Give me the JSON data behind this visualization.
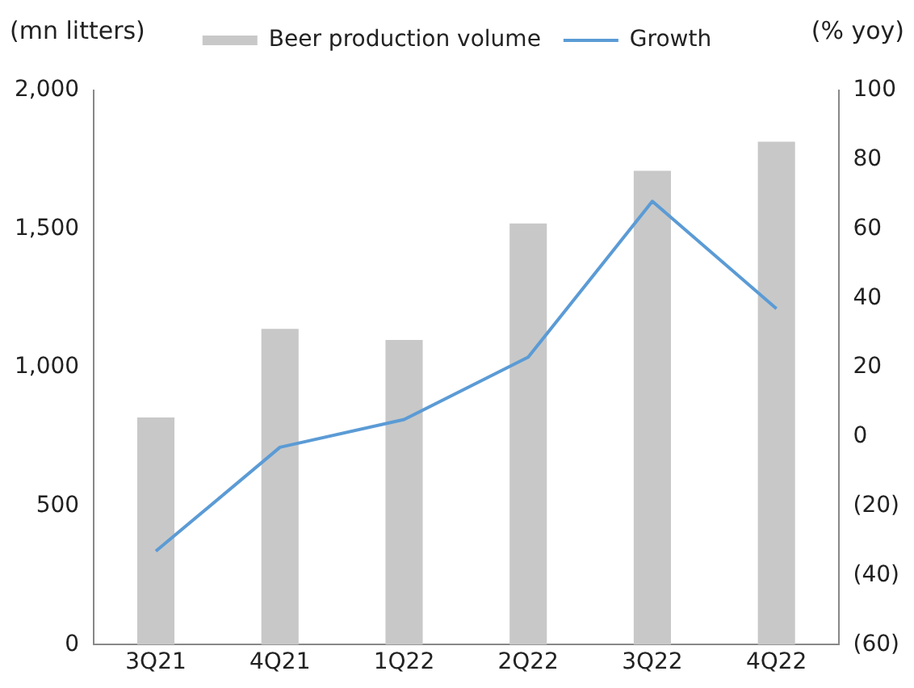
{
  "chart_data": {
    "type": "bar",
    "ylabel": "(mn litters)",
    "y2label": "(% yoy)",
    "categories": [
      "3Q21",
      "4Q21",
      "1Q22",
      "2Q22",
      "3Q22",
      "4Q22"
    ],
    "series": [
      {
        "name": "Beer production volume",
        "color": "#c8c8c8",
        "values": [
          820,
          1140,
          1100,
          1520,
          1710,
          1815
        ]
      },
      {
        "name": "Growth",
        "type": "line",
        "axis": "y2",
        "color": "#5b9bd5",
        "values": [
          -33,
          -3,
          5,
          23,
          68,
          37
        ]
      }
    ],
    "ylim": [
      0,
      2000
    ],
    "yticks": [
      0,
      500,
      {
        "value": 1000,
        "label": "1,000"
      },
      {
        "value": 1500,
        "label": "1,500"
      },
      {
        "value": 2000,
        "label": "2,000"
      }
    ],
    "y2lim": [
      -60,
      100
    ],
    "y2ticks": [
      {
        "value": -60,
        "label": "(60)"
      },
      {
        "value": -40,
        "label": "(40)"
      },
      {
        "value": -20,
        "label": "(20)"
      },
      0,
      20,
      40,
      60,
      80,
      100
    ],
    "grid": false,
    "legend": "top",
    "marker": "none"
  }
}
